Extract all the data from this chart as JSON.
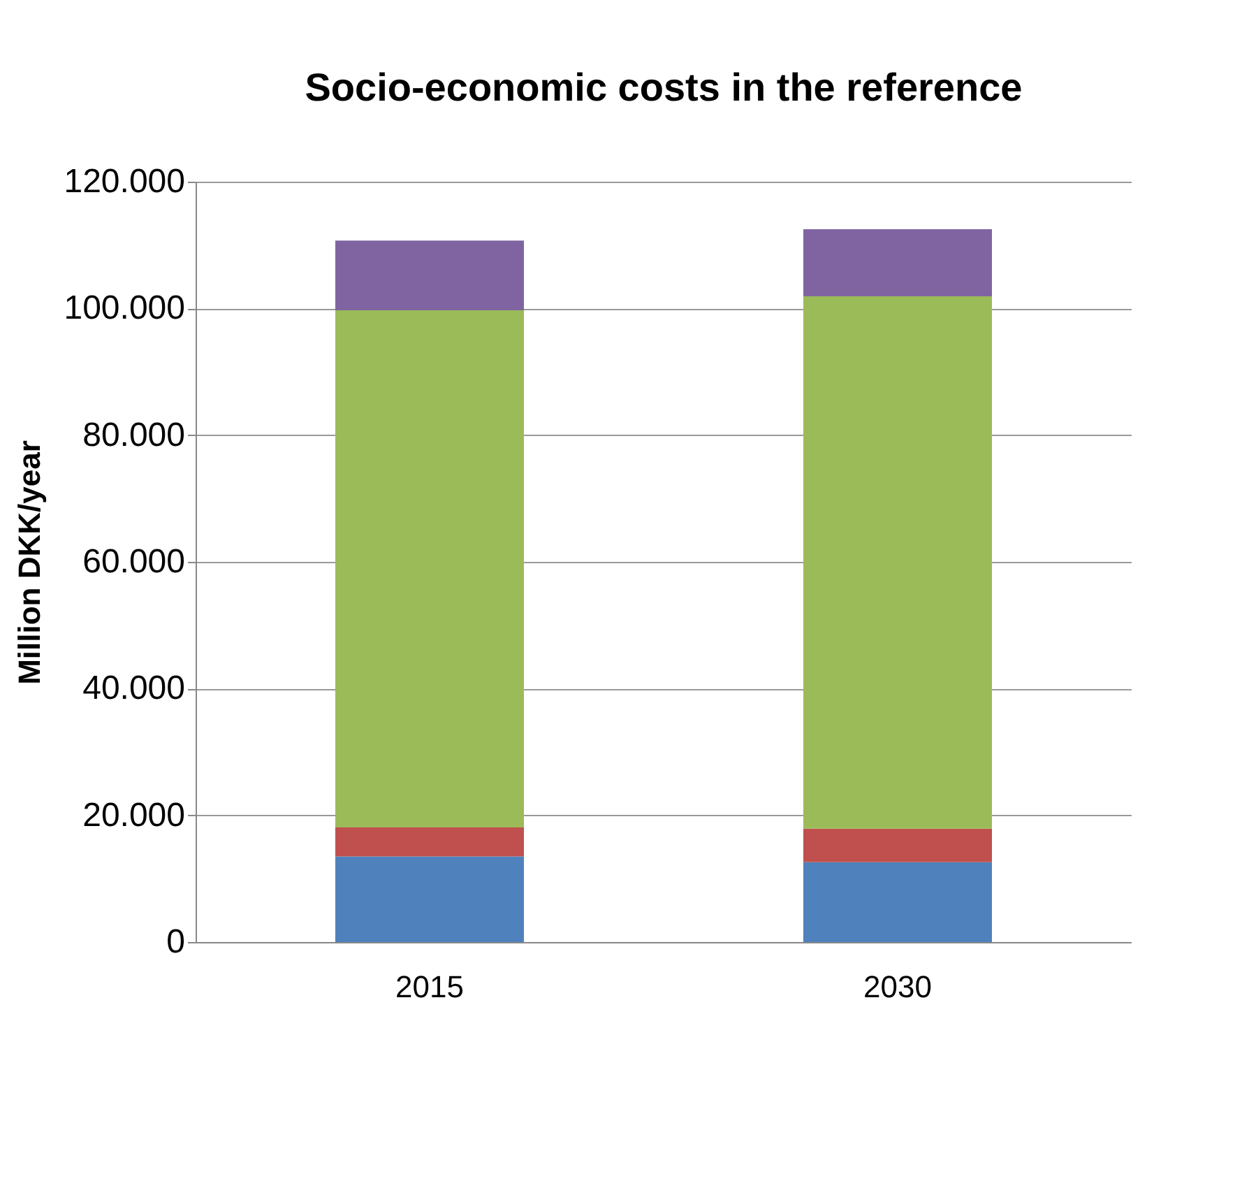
{
  "chart_data": {
    "type": "bar",
    "title": "Socio-economic costs in the reference",
    "ylabel": "Million DKK/year",
    "categories": [
      "2015",
      "2030"
    ],
    "stacked": true,
    "series": [
      {
        "color": "#4f81bd",
        "values": [
          13500,
          12600
        ]
      },
      {
        "color": "#c0504d",
        "values": [
          4600,
          5300
        ]
      },
      {
        "color": "#9bbb59",
        "values": [
          81600,
          84000
        ]
      },
      {
        "color": "#8064a2",
        "values": [
          11000,
          10600
        ]
      }
    ],
    "ylim": [
      0,
      120000
    ],
    "yticks": [
      0,
      {
        "value": 20000,
        "label": "20.000"
      },
      {
        "value": 40000,
        "label": "40.000"
      },
      {
        "value": 60000,
        "label": "60.000"
      },
      {
        "value": 80000,
        "label": "80.000"
      },
      {
        "value": 100000,
        "label": "100.000"
      },
      {
        "value": 120000,
        "label": "120.000"
      }
    ],
    "grid": "y",
    "legend": false
  }
}
